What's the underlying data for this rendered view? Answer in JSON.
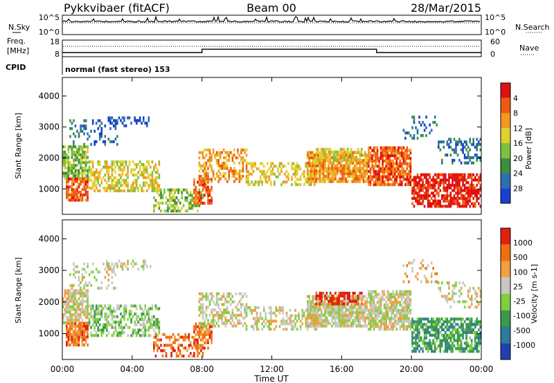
{
  "header": {
    "station": "Pykkvibaer (fitACF)",
    "beam": "Beam 00",
    "date": "28/Mar/2015"
  },
  "noise_panel": {
    "left_label": "N.Sky",
    "right_label": "N.Search",
    "left_ticks": [
      "10^5",
      "10^0"
    ],
    "right_ticks": [
      "10^5",
      "10^0"
    ]
  },
  "freq_panel": {
    "left_label_1": "Freq.",
    "left_label_2": "[MHz]",
    "right_label": "Nave",
    "left_ticks": [
      "18",
      "8"
    ],
    "right_ticks": [
      "60",
      "0"
    ]
  },
  "cpid": {
    "label": "CPID",
    "text": "normal (fast stereo) 153"
  },
  "x_axis": {
    "label": "Time UT",
    "ticks": [
      "00:00",
      "04:00",
      "08:00",
      "12:00",
      "16:00",
      "20:00",
      "00:00"
    ]
  },
  "power_panel": {
    "ylabel": "Slant Range [km]",
    "yticks": [
      "1000",
      "2000",
      "3000",
      "4000"
    ],
    "colorbar_label": "Power [dB]",
    "colorbar_ticks": [
      "4",
      "8",
      "12",
      "16",
      "20",
      "24",
      "28"
    ]
  },
  "velocity_panel": {
    "ylabel": "Slant Range [km]",
    "yticks": [
      "1000",
      "2000",
      "3000",
      "4000"
    ],
    "colorbar_label": "Velocity [m s-1]",
    "colorbar_ticks": [
      "1000",
      "500",
      "100",
      "25",
      "-25",
      "-100",
      "-500",
      "-1000"
    ]
  },
  "chart_data": {
    "type": "heatmap",
    "x_range_hours": [
      0,
      24
    ],
    "y_range_km": [
      180,
      4600
    ],
    "freq_segments": [
      {
        "from_h": 0,
        "to_h": 8.0,
        "freq_mhz": 10.5
      },
      {
        "from_h": 8.0,
        "to_h": 18.0,
        "freq_mhz": 12.5
      },
      {
        "from_h": 18.0,
        "to_h": 24.0,
        "freq_mhz": 10.5
      }
    ],
    "power_colors": [
      "#1a3fd1",
      "#2a6fb0",
      "#3c8f3c",
      "#7fbf3f",
      "#e0d030",
      "#f29a20",
      "#f05a10",
      "#e01010"
    ],
    "velocity_colors": [
      "#2040b0",
      "#2e7a9a",
      "#3a9a4a",
      "#7fd040",
      "#c8c8c0",
      "#f0a040",
      "#f07010",
      "#e02010"
    ],
    "scatter_regions": [
      {
        "t0": 0.0,
        "t1": 1.5,
        "r0": 1300,
        "r1": 2400,
        "density": 0.75,
        "power": 3,
        "vel": 4
      },
      {
        "t0": 0.2,
        "t1": 1.5,
        "r0": 600,
        "r1": 1300,
        "density": 0.8,
        "power": 6,
        "vel": 6
      },
      {
        "t0": 0.4,
        "t1": 3.2,
        "r0": 2400,
        "r1": 3200,
        "density": 0.25,
        "power": 1,
        "vel": 4
      },
      {
        "t0": 1.5,
        "t1": 5.5,
        "r0": 900,
        "r1": 1900,
        "density": 0.55,
        "power": 4,
        "vel": 3
      },
      {
        "t0": 2.5,
        "t1": 5.0,
        "r0": 3000,
        "r1": 3300,
        "density": 0.3,
        "power": 0,
        "vel": 4
      },
      {
        "t0": 5.2,
        "t1": 8.0,
        "r0": 250,
        "r1": 1000,
        "density": 0.45,
        "power": 3,
        "vel": 6
      },
      {
        "t0": 7.5,
        "t1": 8.5,
        "r0": 500,
        "r1": 1300,
        "density": 0.6,
        "power": 6,
        "vel": 6
      },
      {
        "t0": 7.8,
        "t1": 10.5,
        "r0": 1200,
        "r1": 2300,
        "density": 0.5,
        "power": 5,
        "vel": 4
      },
      {
        "t0": 10.5,
        "t1": 14.5,
        "r0": 1100,
        "r1": 1800,
        "density": 0.45,
        "power": 4,
        "vel": 4
      },
      {
        "t0": 14.0,
        "t1": 17.5,
        "r0": 1200,
        "r1": 2200,
        "density": 0.85,
        "power": 5,
        "vel": 4
      },
      {
        "t0": 14.5,
        "t1": 17.2,
        "r0": 1900,
        "r1": 2300,
        "density": 0.6,
        "power": 4,
        "vel": 7
      },
      {
        "t0": 17.5,
        "t1": 20.0,
        "r0": 1100,
        "r1": 2300,
        "density": 0.8,
        "power": 6,
        "vel": 4
      },
      {
        "t0": 19.5,
        "t1": 21.5,
        "r0": 2600,
        "r1": 3300,
        "density": 0.2,
        "power": 1,
        "vel": 5
      },
      {
        "t0": 20.0,
        "t1": 24.0,
        "r0": 400,
        "r1": 1500,
        "density": 0.7,
        "power": 7,
        "vel": 2
      },
      {
        "t0": 21.5,
        "t1": 24.0,
        "r0": 1800,
        "r1": 2600,
        "density": 0.3,
        "power": 1,
        "vel": 4
      }
    ]
  }
}
